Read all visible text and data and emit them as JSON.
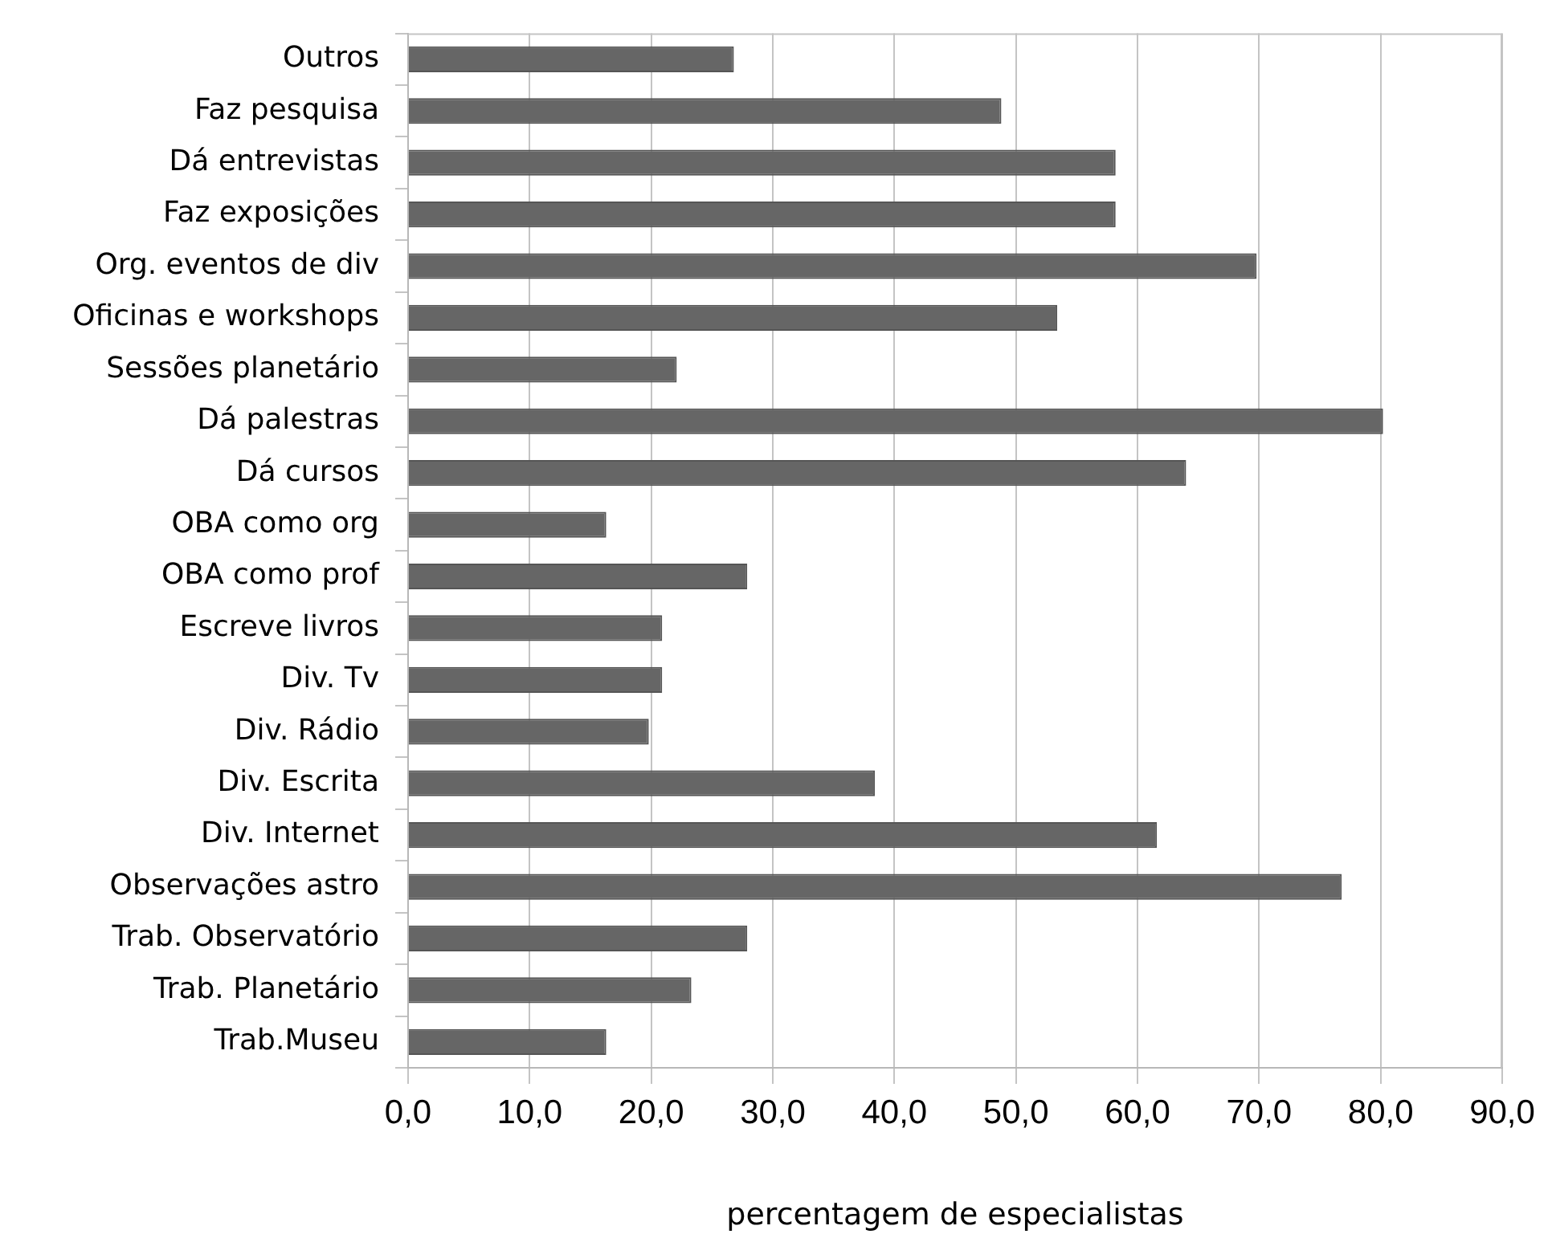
{
  "chart_data": {
    "type": "bar",
    "orientation": "horizontal",
    "categories": [
      "Outros",
      "Faz pesquisa",
      "Dá entrevistas",
      "Faz exposições",
      "Org. eventos de div",
      "Oficinas e workshops",
      "Sessões planetário",
      "Dá palestras",
      "Dá cursos",
      "OBA como org",
      "OBA como prof",
      "Escreve livros",
      "Div. Tv",
      "Div. Rádio",
      "Div. Escrita",
      "Div. Internet",
      "Observações astro",
      "Trab. Observatório",
      "Trab. Planetário",
      "Trab.Museu"
    ],
    "values": [
      26.8,
      48.8,
      58.2,
      58.2,
      69.8,
      53.4,
      22.1,
      80.2,
      64.0,
      16.3,
      27.9,
      20.9,
      20.9,
      19.8,
      38.4,
      61.6,
      76.8,
      27.9,
      23.3,
      16.3
    ],
    "color": "#666666",
    "xlim": [
      0,
      90
    ],
    "xticks": [
      {
        "value": 0,
        "label": "0,0"
      },
      {
        "value": 10,
        "label": "10,0"
      },
      {
        "value": 20,
        "label": "20,0"
      },
      {
        "value": 30,
        "label": "30,0"
      },
      {
        "value": 40,
        "label": "40,0"
      },
      {
        "value": 50,
        "label": "50,0"
      },
      {
        "value": 60,
        "label": "60,0"
      },
      {
        "value": 70,
        "label": "70,0"
      },
      {
        "value": 80,
        "label": "80,0"
      },
      {
        "value": 90,
        "label": "90,0"
      }
    ],
    "xlabel": "percentagem de especialistas",
    "grid": "x"
  }
}
